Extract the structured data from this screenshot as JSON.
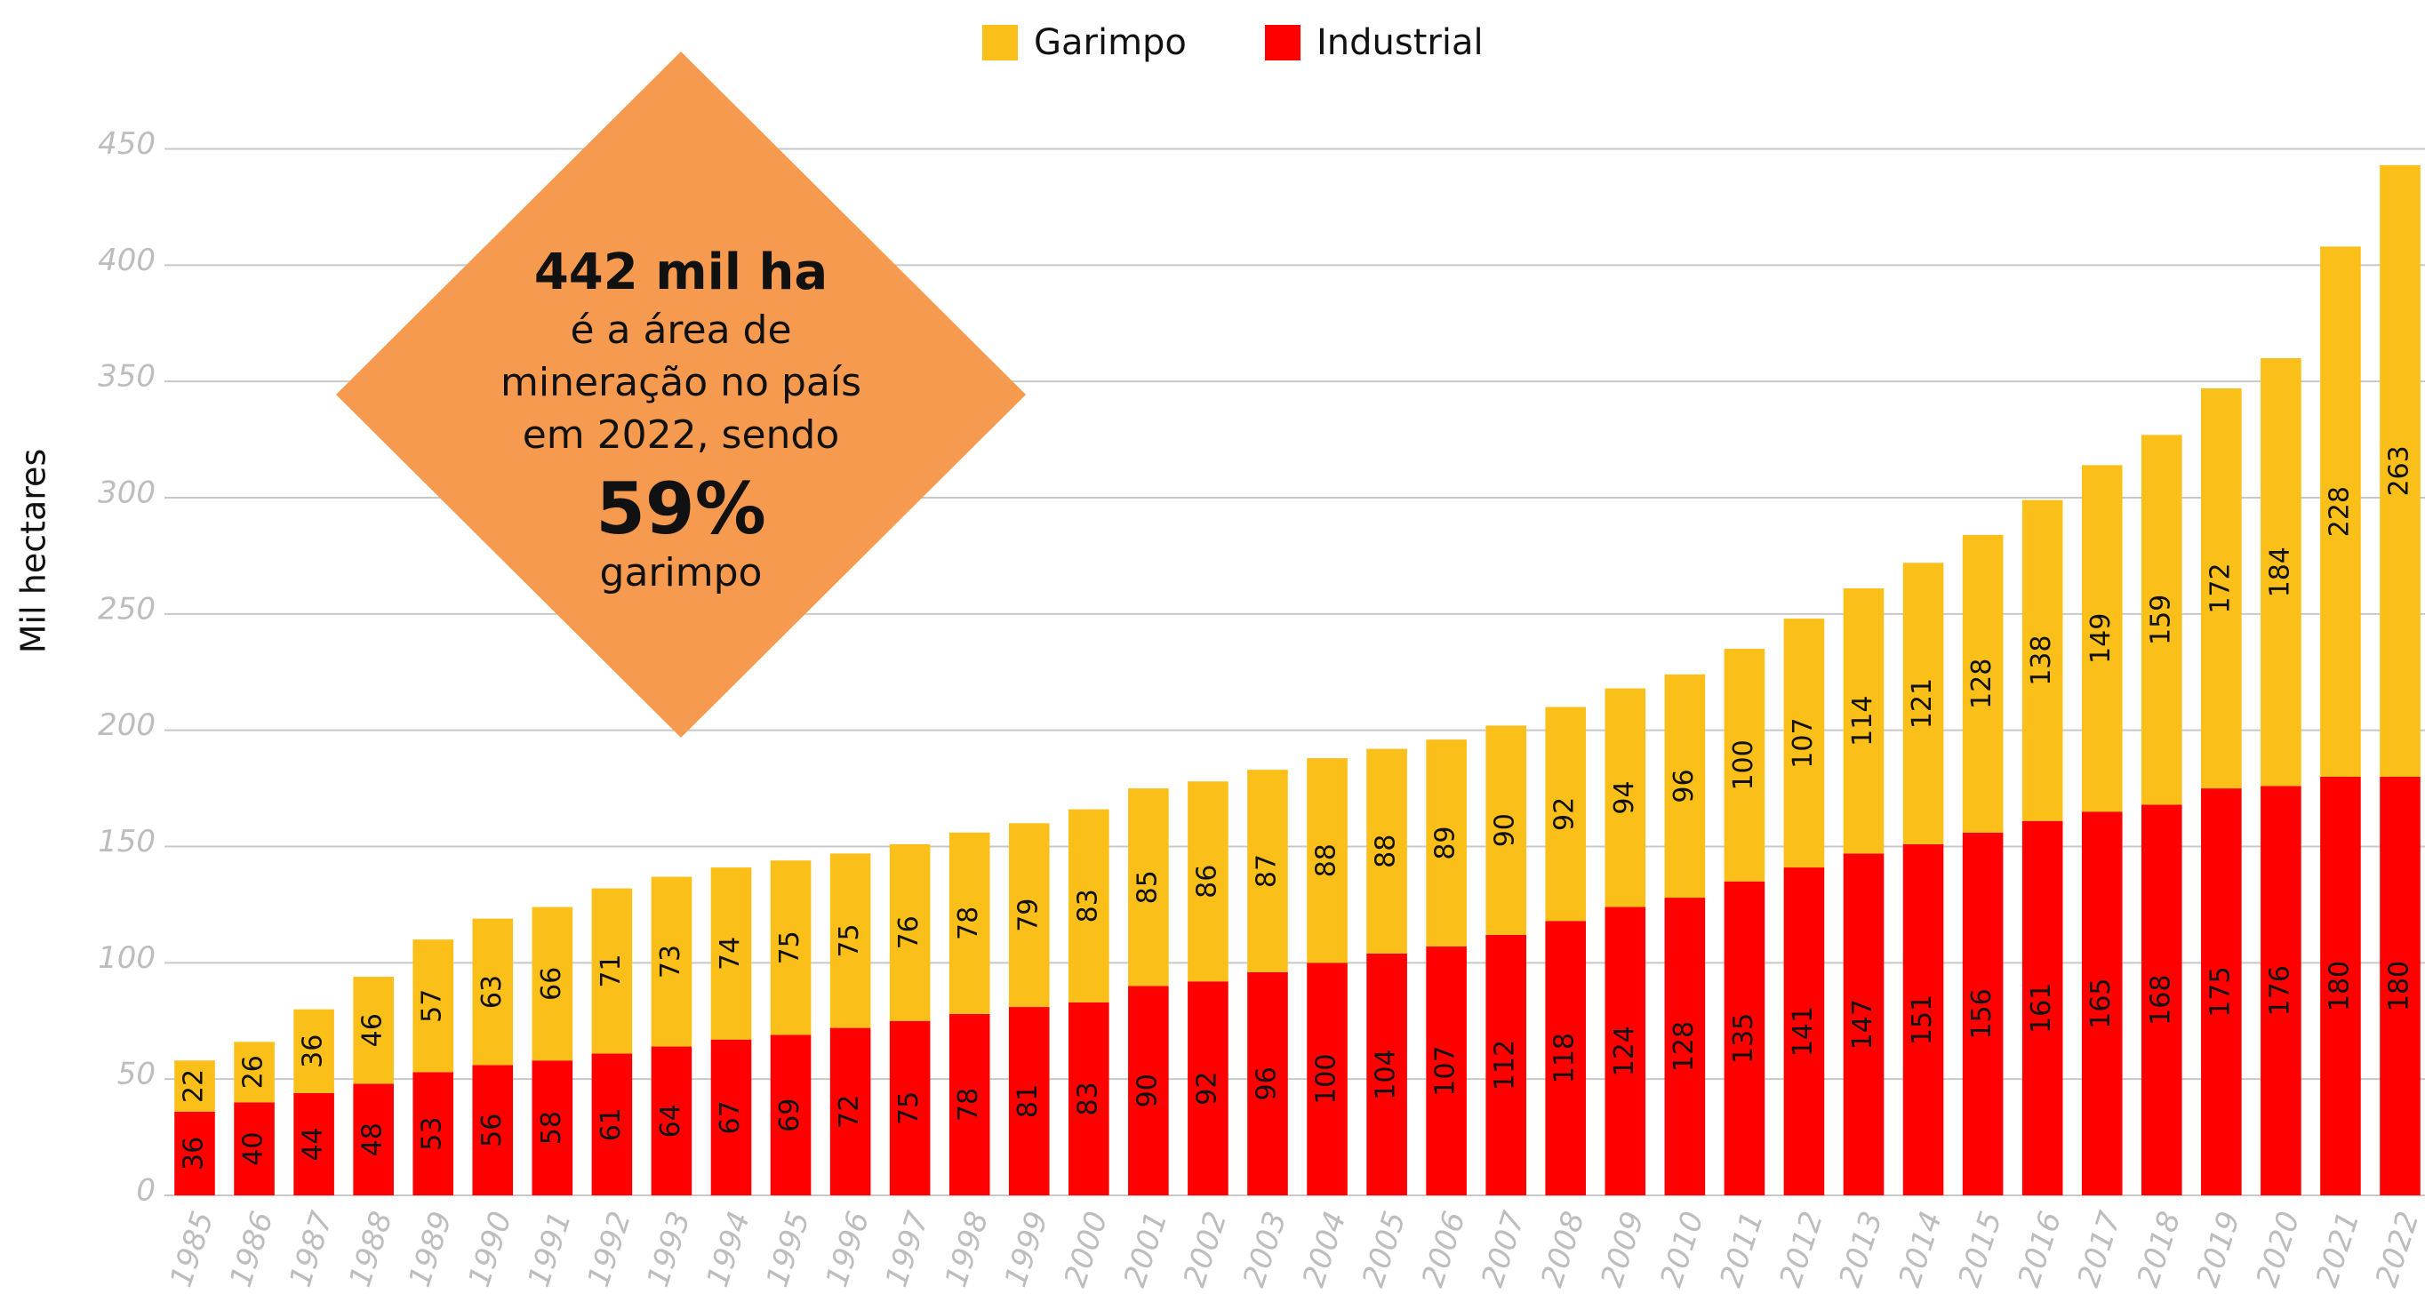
{
  "chart_data": {
    "type": "stacked_bar",
    "y_label": "Mil hectares",
    "categories": [
      "1985",
      "1986",
      "1987",
      "1988",
      "1989",
      "1990",
      "1991",
      "1992",
      "1993",
      "1994",
      "1995",
      "1996",
      "1997",
      "1998",
      "1999",
      "2000",
      "2001",
      "2002",
      "2003",
      "2004",
      "2005",
      "2006",
      "2007",
      "2008",
      "2009",
      "2010",
      "2011",
      "2012",
      "2013",
      "2014",
      "2015",
      "2016",
      "2017",
      "2018",
      "2019",
      "2020",
      "2021",
      "2022"
    ],
    "series": [
      {
        "name": "Industrial",
        "color": "#ff0000",
        "values": [
          36,
          40,
          44,
          48,
          53,
          56,
          58,
          61,
          64,
          67,
          69,
          72,
          75,
          78,
          81,
          83,
          90,
          92,
          96,
          100,
          104,
          107,
          112,
          118,
          124,
          128,
          135,
          141,
          147,
          151,
          156,
          161,
          165,
          168,
          175,
          176,
          180,
          180
        ]
      },
      {
        "name": "Garimpo",
        "color": "#fbbf1a",
        "values": [
          22,
          26,
          36,
          46,
          57,
          63,
          66,
          71,
          73,
          74,
          75,
          75,
          76,
          78,
          79,
          83,
          85,
          86,
          87,
          88,
          88,
          89,
          90,
          92,
          94,
          96,
          100,
          107,
          114,
          121,
          128,
          138,
          149,
          159,
          172,
          184,
          228,
          263
        ]
      }
    ],
    "legend_order": [
      1,
      0
    ],
    "ylim": [
      0,
      480
    ],
    "yticks": [
      0,
      50,
      100,
      150,
      200,
      250,
      300,
      350,
      400,
      450
    ],
    "grid": true,
    "annotation": {
      "color": "#f59a4f",
      "lines": [
        "442 mil ha",
        "é a área de",
        "mineração no país",
        "em 2022, sendo",
        "59%",
        "garimpo"
      ]
    }
  }
}
